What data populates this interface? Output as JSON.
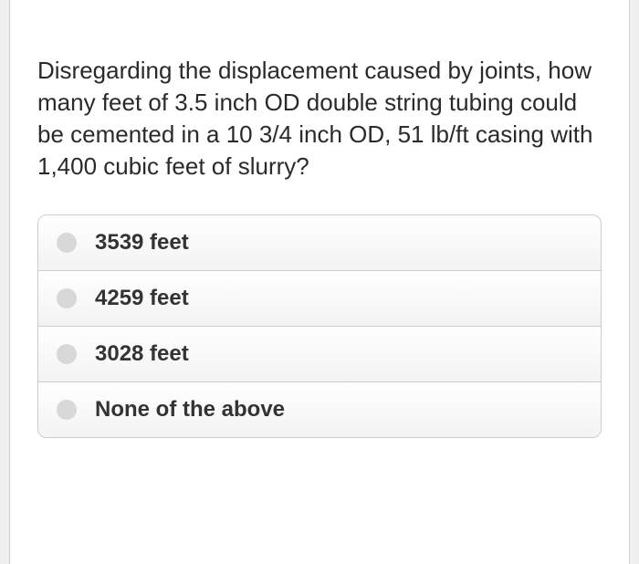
{
  "question": {
    "text": "Disregarding the displacement caused by joints, how many feet of 3.5 inch OD double string tubing could be cemented in a 10 3/4 inch OD, 51 lb/ft casing with 1,400 cubic feet of slurry?",
    "text_color": "#2a2a2a",
    "font_size": 26
  },
  "options": [
    {
      "label": "3539 feet",
      "selected": false
    },
    {
      "label": "4259 feet",
      "selected": false
    },
    {
      "label": "3028 feet",
      "selected": false
    },
    {
      "label": "None of the above",
      "selected": false
    }
  ],
  "styling": {
    "background_color": "#f0f0f0",
    "container_background": "#ffffff",
    "border_color": "#cccccc",
    "radio_color": "#d8d8d8",
    "option_gradient_top": "#ffffff",
    "option_gradient_bottom": "#f3f3f3",
    "option_text_color": "#333333",
    "option_font_size": 24,
    "option_font_weight": "bold",
    "border_radius": 10
  }
}
